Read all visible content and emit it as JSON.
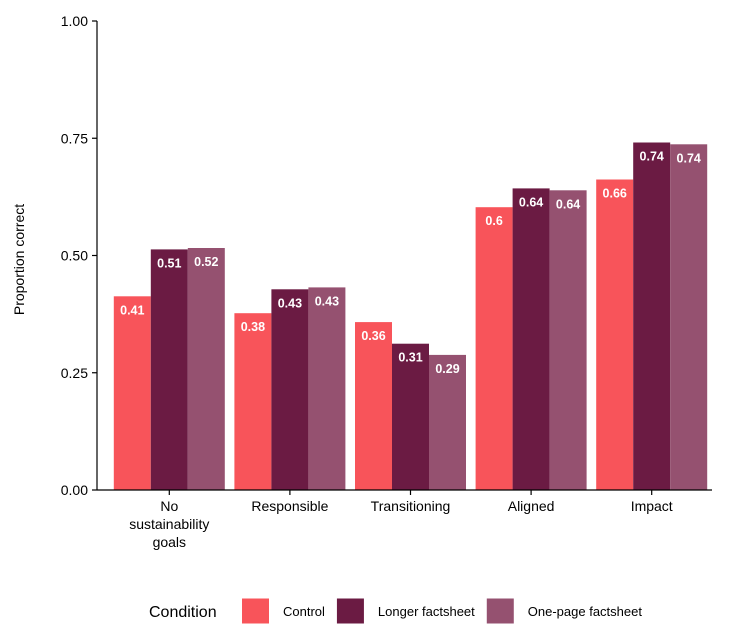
{
  "chart_data": {
    "type": "bar",
    "title": "",
    "xlabel": "",
    "ylabel": "Proportion correct",
    "ylim": [
      0,
      1
    ],
    "yticks": [
      "0.00",
      "0.25",
      "0.50",
      "0.75",
      "1.00"
    ],
    "ytick_values": [
      0,
      0.25,
      0.5,
      0.75,
      1.0
    ],
    "grid": false,
    "legend_position": "bottom",
    "legend_title": "Condition",
    "categories": [
      [
        "No",
        "sustainability",
        "goals"
      ],
      [
        "Responsible"
      ],
      [
        "Transitioning"
      ],
      [
        "Aligned"
      ],
      [
        "Impact"
      ]
    ],
    "series": [
      {
        "name": "Control",
        "color": "#f8545a",
        "values": [
          0.413,
          0.377,
          0.358,
          0.603,
          0.662
        ],
        "labels": [
          "0.41",
          "0.38",
          "0.36",
          "0.6",
          "0.66"
        ]
      },
      {
        "name": "Longer factsheet",
        "color": "#6b1b43",
        "values": [
          0.513,
          0.428,
          0.312,
          0.643,
          0.741
        ],
        "labels": [
          "0.51",
          "0.43",
          "0.31",
          "0.64",
          "0.74"
        ]
      },
      {
        "name": "One-page factsheet",
        "color": "#955170",
        "values": [
          0.516,
          0.432,
          0.288,
          0.639,
          0.737
        ],
        "labels": [
          "0.52",
          "0.43",
          "0.29",
          "0.64",
          "0.74"
        ]
      }
    ]
  }
}
